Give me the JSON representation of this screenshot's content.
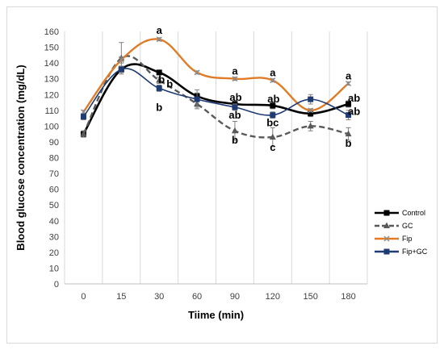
{
  "chart_data": {
    "type": "line",
    "xlabel": "Tiime (min)",
    "ylabel": "Blood glucose concentration (mg/dL)",
    "categories": [
      "0",
      "15",
      "30",
      "60",
      "90",
      "120",
      "150",
      "180"
    ],
    "ylim": [
      0,
      160
    ],
    "yticks": [
      0,
      10,
      20,
      30,
      40,
      50,
      60,
      70,
      80,
      90,
      100,
      110,
      120,
      130,
      140,
      150,
      160
    ],
    "grid": "vertical",
    "legend_position": "right",
    "series": [
      {
        "name": "Control",
        "color": "#000000",
        "marker": "square",
        "dash": "solid",
        "values": [
          95,
          136,
          134,
          119,
          114,
          113,
          108,
          114
        ],
        "errors": [
          2,
          2,
          1,
          2,
          2,
          2,
          2,
          2
        ]
      },
      {
        "name": "GC",
        "color": "#595959",
        "marker": "triangle",
        "dash": "dashed",
        "values": [
          95,
          143,
          129,
          114,
          97,
          93,
          100,
          95
        ],
        "errors": [
          2,
          10,
          2,
          2,
          6,
          6,
          3,
          4
        ]
      },
      {
        "name": "Fip",
        "color": "#e07b26",
        "marker": "x",
        "dash": "solid",
        "values": [
          109,
          142,
          155,
          134,
          130,
          129,
          110,
          127
        ],
        "errors": [
          1,
          2,
          1,
          1,
          1,
          1,
          1,
          1
        ]
      },
      {
        "name": "Fip+GC",
        "color": "#1f3b73",
        "marker": "square",
        "dash": "solid",
        "values": [
          106,
          136,
          124,
          117,
          112,
          107,
          117,
          107
        ],
        "errors": [
          2,
          2,
          2,
          6,
          2,
          2,
          3,
          3
        ]
      }
    ],
    "annotations": [
      {
        "text": "a",
        "x": "30",
        "y": 155
      },
      {
        "text": "b",
        "x": "30",
        "y": 134
      },
      {
        "text": "b",
        "x": "30",
        "y": 129
      },
      {
        "text": "b",
        "x": "30",
        "y": 124
      },
      {
        "text": "a",
        "x": "90",
        "y": 130
      },
      {
        "text": "ab",
        "x": "90",
        "y": 114
      },
      {
        "text": "ab",
        "x": "90",
        "y": 112
      },
      {
        "text": "b",
        "x": "90",
        "y": 97
      },
      {
        "text": "a",
        "x": "120",
        "y": 129
      },
      {
        "text": "ab",
        "x": "120",
        "y": 113
      },
      {
        "text": "bc",
        "x": "120",
        "y": 107
      },
      {
        "text": "c",
        "x": "120",
        "y": 93
      },
      {
        "text": "a",
        "x": "180",
        "y": 127
      },
      {
        "text": "ab",
        "x": "180",
        "y": 114
      },
      {
        "text": "ab",
        "x": "180",
        "y": 107
      },
      {
        "text": "b",
        "x": "180",
        "y": 95
      }
    ]
  }
}
